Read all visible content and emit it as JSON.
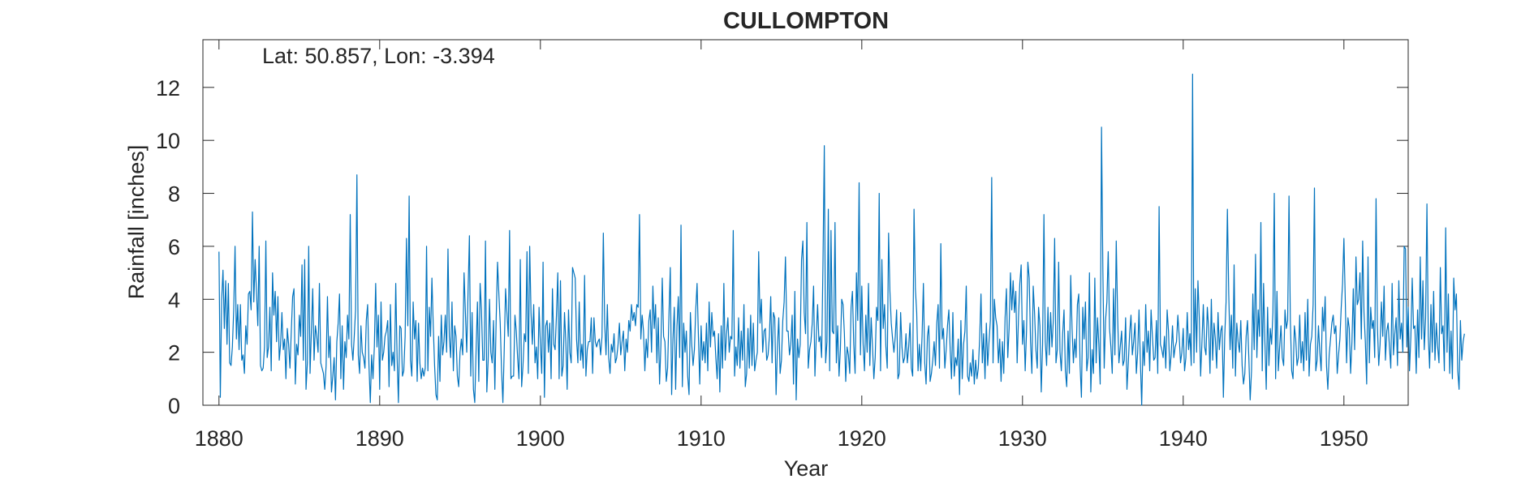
{
  "chart_data": {
    "type": "line",
    "title": "CULLOMPTON",
    "annotation": "Lat: 50.857, Lon: -3.394",
    "xlabel": "Year",
    "ylabel": "Rainfall [inches]",
    "xlim": [
      1879,
      1954
    ],
    "ylim": [
      0,
      13.8
    ],
    "xticks": [
      1880,
      1890,
      1900,
      1910,
      1920,
      1930,
      1940,
      1950
    ],
    "yticks": [
      0,
      2,
      4,
      6,
      8,
      10,
      12
    ],
    "grid": false,
    "legend": "none",
    "x_start_year": 1880,
    "step": "monthly",
    "series": [
      {
        "color": "#0072BD",
        "values": [
          5.8,
          0.3,
          4.0,
          5.1,
          2.9,
          4.7,
          2.3,
          4.6,
          1.6,
          1.5,
          2.2,
          3.6,
          6.0,
          2.5,
          3.8,
          2.1,
          3.8,
          1.7,
          1.9,
          1.2,
          3.0,
          2.3,
          4.2,
          4.3,
          3.6,
          7.3,
          3.9,
          5.5,
          4.3,
          3.0,
          6.0,
          1.5,
          1.3,
          1.4,
          2.2,
          6.2,
          1.8,
          2.2,
          3.7,
          1.3,
          5.0,
          3.4,
          4.3,
          2.4,
          4.1,
          1.7,
          2.3,
          3.5,
          2.1,
          2.5,
          1.0,
          2.9,
          2.3,
          1.4,
          2.8,
          4.1,
          4.4,
          0.8,
          2.3,
          1.9,
          3.4,
          2.6,
          5.3,
          1.7,
          5.5,
          0.6,
          1.6,
          6.0,
          1.2,
          2.8,
          4.4,
          1.7,
          3.0,
          2.6,
          2.0,
          4.6,
          1.6,
          1.4,
          1.2,
          0.6,
          1.5,
          4.1,
          1.8,
          2.6,
          0.5,
          1.1,
          1.8,
          0.2,
          2.4,
          3.1,
          4.2,
          1.0,
          3.0,
          0.6,
          2.4,
          1.8,
          3.4,
          2.5,
          7.2,
          2.3,
          1.7,
          2.6,
          3.6,
          8.7,
          1.9,
          1.2,
          3.0,
          2.0,
          1.8,
          1.4,
          3.2,
          3.8,
          1.5,
          0.1,
          1.9,
          1.0,
          2.2,
          4.6,
          2.2,
          3.4,
          0.6,
          3.9,
          1.7,
          2.0,
          2.6,
          2.8,
          3.2,
          0.7,
          3.8,
          1.5,
          2.0,
          1.3,
          4.6,
          1.8,
          0.1,
          3.0,
          2.9,
          1.1,
          1.3,
          2.6,
          6.3,
          3.0,
          7.9,
          1.7,
          1.1,
          3.9,
          2.5,
          3.2,
          0.9,
          3.1,
          1.6,
          1.0,
          1.4,
          1.1,
          1.4,
          6.0,
          1.3,
          3.7,
          2.6,
          4.8,
          3.0,
          1.5,
          0.4,
          0.2,
          2.6,
          0.9,
          3.4,
          1.9,
          2.4,
          3.4,
          2.0,
          5.9,
          2.6,
          1.8,
          3.9,
          1.3,
          3.0,
          2.6,
          1.1,
          0.7,
          2.0,
          2.5,
          1.9,
          5.0,
          3.5,
          2.0,
          4.3,
          6.4,
          1.1,
          3.5,
          0.6,
          0.1,
          2.1,
          3.9,
          0.9,
          4.6,
          3.6,
          1.7,
          1.7,
          6.2,
          0.5,
          1.7,
          4.0,
          2.0,
          1.6,
          3.2,
          0.6,
          3.3,
          5.4,
          4.2,
          3.1,
          1.3,
          0.1,
          2.1,
          4.4,
          3.5,
          2.6,
          6.6,
          1.0,
          1.1,
          1.1,
          3.4,
          2.8,
          1.8,
          1.0,
          5.5,
          0.7,
          1.5,
          2.7,
          2.4,
          5.8,
          1.2,
          6.0,
          3.5,
          2.3,
          3.8,
          1.6,
          2.2,
          1.0,
          3.7,
          2.3,
          1.2,
          5.4,
          0.3,
          3.0,
          3.2,
          2.0,
          3.1,
          1.0,
          4.4,
          2.3,
          2.1,
          3.4,
          5.0,
          1.0,
          4.7,
          1.1,
          1.5,
          3.5,
          2.4,
          0.6,
          3.6,
          2.0,
          1.6,
          5.2,
          5.0,
          4.8,
          2.5,
          1.6,
          3.9,
          1.7,
          2.3,
          1.4,
          4.9,
          1.1,
          2.1,
          2.4,
          2.4,
          3.3,
          1.2,
          3.3,
          2.4,
          2.2,
          2.4,
          2.5,
          1.9,
          2.6,
          6.5,
          3.1,
          1.9,
          3.8,
          1.8,
          1.2,
          2.3,
          2.0,
          2.7,
          1.6,
          1.8,
          2.3,
          3.1,
          1.9,
          2.4,
          2.8,
          1.3,
          2.5,
          2.0,
          3.2,
          2.8,
          3.8,
          3.2,
          3.5,
          3.0,
          3.8,
          3.7,
          7.2,
          2.5,
          3.4,
          2.8,
          1.3,
          2.5,
          1.8,
          3.2,
          3.6,
          2.0,
          4.5,
          2.9,
          3.8,
          1.6,
          3.3,
          0.8,
          2.3,
          4.8,
          2.6,
          2.4,
          0.9,
          1.4,
          3.4,
          5.2,
          0.4,
          2.5,
          3.7,
          0.6,
          3.0,
          4.1,
          1.8,
          6.8,
          0.7,
          3.1,
          2.0,
          2.8,
          1.1,
          0.4,
          3.5,
          2.3,
          1.5,
          2.1,
          3.6,
          4.6,
          2.6,
          0.8,
          3.0,
          1.7,
          2.4,
          1.6,
          3.1,
          1.3,
          3.9,
          2.2,
          3.5,
          2.6,
          2.8,
          1.8,
          1.0,
          2.7,
          0.5,
          3.0,
          1.4,
          4.6,
          1.7,
          2.7,
          3.3,
          2.0,
          2.6,
          2.5,
          6.6,
          1.1,
          2.2,
          1.5,
          3.3,
          1.4,
          2.8,
          1.7,
          3.8,
          0.7,
          1.2,
          2.9,
          1.4,
          3.4,
          1.5,
          3.1,
          1.3,
          1.7,
          2.0,
          5.8,
          3.1,
          4.0,
          2.0,
          2.8,
          2.9,
          1.7,
          1.9,
          2.6,
          4.1,
          1.6,
          3.5,
          3.3,
          0.4,
          2.2,
          3.3,
          1.2,
          1.7,
          3.2,
          3.9,
          5.6,
          2.8,
          2.8,
          1.9,
          2.3,
          3.4,
          0.8,
          4.3,
          0.2,
          2.5,
          1.8,
          2.3,
          5.5,
          6.2,
          3.5,
          2.7,
          6.9,
          1.4,
          2.1,
          2.4,
          3.1,
          4.5,
          1.1,
          2.6,
          3.8,
          2.4,
          2.6,
          1.8,
          5.3,
          9.8,
          1.6,
          2.4,
          7.4,
          1.3,
          6.6,
          2.8,
          2.7,
          6.9,
          1.6,
          3.0,
          1.1,
          2.1,
          4.0,
          3.8,
          2.7,
          0.9,
          2.2,
          1.9,
          1.2,
          3.7,
          4.3,
          2.3,
          1.2,
          5.0,
          3.2,
          8.4,
          1.9,
          4.5,
          2.3,
          1.3,
          3.4,
          2.0,
          4.6,
          1.5,
          3.3,
          2.2,
          1.0,
          1.8,
          3.7,
          3.2,
          8.0,
          1.3,
          5.5,
          2.9,
          3.8,
          2.2,
          1.4,
          6.5,
          4.3,
          3.1,
          2.5,
          2.0,
          2.6,
          3.6,
          1.0,
          1.2,
          3.5,
          2.2,
          1.6,
          1.8,
          2.7,
          1.6,
          2.2,
          3.1,
          1.4,
          1.1,
          7.4,
          4.4,
          3.5,
          1.3,
          2.3,
          1.3,
          2.6,
          4.6,
          1.6,
          0.8,
          2.6,
          3.0,
          0.9,
          1.2,
          1.7,
          2.4,
          1.5,
          3.1,
          3.8,
          1.4,
          6.1,
          2.5,
          2.9,
          1.4,
          2.1,
          3.0,
          3.6,
          2.1,
          1.0,
          3.5,
          1.1,
          1.8,
          1.5,
          2.5,
          0.4,
          3.2,
          1.0,
          2.3,
          2.8,
          4.5,
          1.1,
          0.9,
          1.6,
          1.1,
          2.1,
          0.8,
          1.7,
          1.0,
          1.4,
          2.5,
          4.2,
          1.6,
          2.7,
          1.0,
          3.1,
          1.5,
          2.4,
          3.2,
          8.6,
          1.6,
          4.0,
          3.3,
          3.0,
          1.6,
          2.5,
          0.9,
          2.4,
          1.2,
          3.3,
          4.4,
          1.8,
          2.9,
          5.0,
          3.6,
          4.7,
          3.5,
          4.3,
          1.6,
          3.3,
          4.6,
          5.3,
          2.3,
          3.2,
          1.3,
          2.8,
          5.4,
          4.8,
          2.4,
          1.2,
          4.5,
          3.5,
          2.1,
          1.4,
          3.7,
          3.0,
          0.5,
          2.3,
          7.2,
          2.4,
          1.5,
          3.7,
          1.9,
          3.5,
          2.2,
          3.2,
          6.3,
          1.6,
          2.1,
          5.4,
          2.0,
          1.3,
          2.7,
          3.6,
          1.3,
          0.7,
          2.8,
          1.2,
          4.9,
          2.9,
          1.6,
          2.5,
          1.8,
          3.8,
          4.2,
          1.5,
          0.3,
          3.7,
          2.5,
          3.9,
          1.3,
          1.8,
          5.0,
          0.5,
          2.1,
          1.2,
          4.8,
          1.6,
          3.3,
          2.3,
          0.8,
          10.5,
          5.1,
          1.4,
          3.2,
          3.9,
          5.8,
          2.9,
          2.2,
          1.2,
          4.4,
          1.9,
          6.2,
          3.4,
          1.6,
          2.2,
          2.8,
          1.5,
          1.7,
          3.3,
          0.6,
          1.6,
          2.7,
          3.4,
          1.9,
          2.4,
          3.1,
          1.2,
          2.0,
          3.6,
          1.7,
          0.0,
          2.4,
          1.5,
          3.8,
          2.0,
          2.8,
          1.3,
          3.6,
          2.6,
          1.7,
          1.8,
          3.2,
          1.2,
          7.5,
          2.3,
          2.1,
          1.8,
          2.6,
          1.4,
          3.6,
          2.8,
          1.3,
          1.9,
          3.0,
          1.8,
          2.2,
          2.4,
          3.4,
          2.6,
          1.6,
          2.0,
          2.9,
          1.3,
          1.8,
          3.5,
          2.1,
          2.7,
          1.5,
          12.5,
          1.6,
          4.4,
          2.0,
          4.7,
          3.3,
          1.1,
          2.4,
          3.8,
          2.2,
          1.9,
          3.7,
          2.9,
          1.2,
          4.0,
          1.7,
          3.1,
          2.5,
          1.4,
          3.5,
          2.1,
          2.8,
          3.0,
          0.3,
          2.6,
          3.9,
          7.4,
          4.2,
          2.1,
          3.4,
          1.4,
          5.3,
          1.1,
          3.1,
          2.4,
          2.0,
          3.2,
          1.5,
          0.8,
          1.2,
          2.6,
          3.2,
          1.8,
          0.2,
          1.3,
          4.2,
          2.1,
          5.7,
          1.8,
          3.6,
          2.6,
          6.9,
          1.3,
          4.6,
          2.4,
          0.6,
          3.7,
          1.5,
          2.9,
          2.3,
          3.5,
          8.0,
          1.0,
          4.3,
          1.3,
          2.2,
          3.0,
          1.8,
          1.5,
          3.6,
          2.9,
          3.2,
          7.9,
          3.2,
          1.3,
          1.0,
          3.0,
          2.5,
          1.5,
          1.8,
          3.4,
          1.6,
          2.4,
          1.3,
          3.5,
          1.7,
          4.0,
          1.1,
          2.3,
          2.6,
          3.8,
          8.2,
          1.3,
          1.7,
          3.0,
          2.0,
          1.3,
          3.7,
          2.8,
          4.1,
          1.5,
          0.6,
          1.9,
          2.5,
          3.1,
          3.4,
          2.7,
          3.0,
          1.2,
          1.9,
          2.5,
          3.7,
          4.6,
          6.3,
          4.0,
          1.6,
          3.3,
          2.9,
          1.2,
          2.4,
          4.4,
          2.1,
          5.6,
          3.8,
          4.0,
          5.0,
          2.5,
          6.2,
          3.5,
          2.4,
          0.8,
          5.6,
          1.6,
          3.7,
          2.9,
          3.2,
          1.8,
          7.8,
          3.0,
          1.5,
          2.3,
          3.9,
          2.6,
          4.5,
          1.7,
          2.8,
          3.1,
          2.2,
          1.4,
          4.6,
          1.9,
          2.7,
          3.3,
          1.5,
          4.7,
          2.5,
          3.1,
          2.0,
          6.0,
          5.9,
          2.2,
          3.7,
          1.3,
          2.6,
          4.8,
          2.9,
          3.0,
          1.2,
          3.6,
          1.8,
          5.6,
          2.5,
          4.7,
          2.1,
          3.3,
          7.6,
          2.6,
          1.4,
          3.8,
          2.0,
          4.3,
          1.7,
          3.1,
          2.2,
          1.6,
          5.2,
          2.7,
          3.0,
          1.3,
          6.7,
          2.0,
          4.2,
          1.2,
          2.8,
          1.0,
          4.8,
          3.6,
          4.2,
          1.3,
          0.6,
          3.2,
          1.7,
          2.4,
          2.7
        ]
      }
    ]
  }
}
